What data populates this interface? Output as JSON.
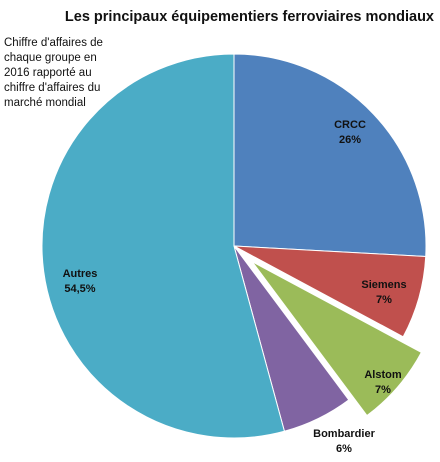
{
  "chart_data": {
    "type": "pie",
    "title": "Les principaux équipementiers ferroviaires mondiaux",
    "subtitle": "Chiffre d'affaires de chaque groupe en 2016 rapporté au chiffre d'affaires du marché mondial",
    "slices": [
      {
        "name": "CRCC",
        "value": 26,
        "label": "26%",
        "color": "#4f81bd",
        "exploded": false
      },
      {
        "name": "Siemens",
        "value": 7,
        "label": "7%",
        "color": "#c0504d",
        "exploded": false
      },
      {
        "name": "Alstom",
        "value": 7,
        "label": "7%",
        "color": "#9bbb59",
        "exploded": true
      },
      {
        "name": "Bombardier",
        "value": 6,
        "label": "6%",
        "color": "#8064a2",
        "exploded": false
      },
      {
        "name": "Autres",
        "value": 54.5,
        "label": "54,5%",
        "color": "#4bacc6",
        "exploded": false
      }
    ],
    "legend": "none"
  }
}
